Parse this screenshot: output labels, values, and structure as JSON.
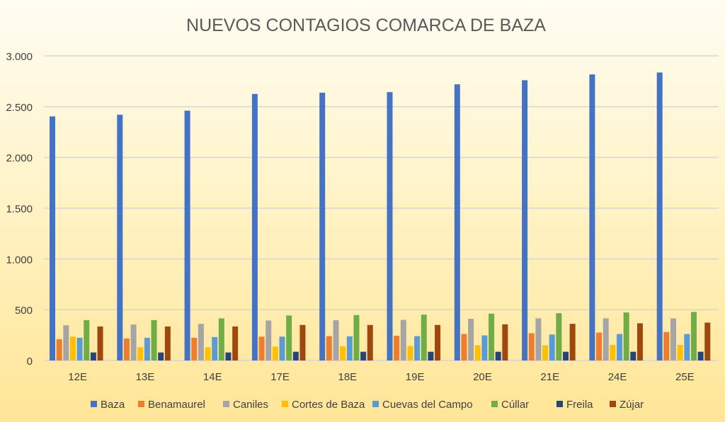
{
  "chart_data": {
    "type": "bar",
    "title": "NUEVOS CONTAGIOS COMARCA DE BAZA",
    "xlabel": "",
    "ylabel": "",
    "ylim": [
      0,
      3000
    ],
    "yticks": [
      0,
      500,
      1000,
      1500,
      2000,
      2500,
      3000
    ],
    "ytick_labels": [
      "0",
      "500",
      "1.000",
      "1.500",
      "2.000",
      "2.500",
      "3.000"
    ],
    "grid": true,
    "legend_position": "bottom",
    "categories": [
      "12E",
      "13E",
      "14E",
      "17E",
      "18E",
      "19E",
      "20E",
      "21E",
      "24E",
      "25E"
    ],
    "series": [
      {
        "name": "Baza",
        "color": "#4472c4",
        "values": [
          2404,
          2420,
          2460,
          2625,
          2637,
          2643,
          2720,
          2760,
          2817,
          2836
        ]
      },
      {
        "name": "Benamaurel",
        "color": "#ed7d31",
        "values": [
          210,
          217,
          224,
          235,
          240,
          243,
          261,
          268,
          275,
          280
        ]
      },
      {
        "name": "Caniles",
        "color": "#a5a5a5",
        "values": [
          347,
          354,
          361,
          394,
          397,
          400,
          410,
          415,
          415,
          415
        ]
      },
      {
        "name": "Cortes de Baza",
        "color": "#ffc000",
        "values": [
          235,
          130,
          130,
          137,
          140,
          143,
          149,
          149,
          154,
          154
        ]
      },
      {
        "name": "Cuevas del Campo",
        "color": "#5b9bd5",
        "values": [
          224,
          224,
          231,
          235,
          238,
          240,
          247,
          256,
          261,
          261
        ]
      },
      {
        "name": "Cúllar",
        "color": "#70ad47",
        "values": [
          398,
          398,
          415,
          443,
          447,
          452,
          461,
          466,
          473,
          478
        ]
      },
      {
        "name": "Freila",
        "color": "#264478",
        "values": [
          79,
          79,
          79,
          86,
          86,
          86,
          86,
          86,
          86,
          86
        ]
      },
      {
        "name": "Zújar",
        "color": "#9e480e",
        "values": [
          335,
          335,
          335,
          350,
          350,
          350,
          356,
          361,
          366,
          373
        ]
      }
    ]
  }
}
